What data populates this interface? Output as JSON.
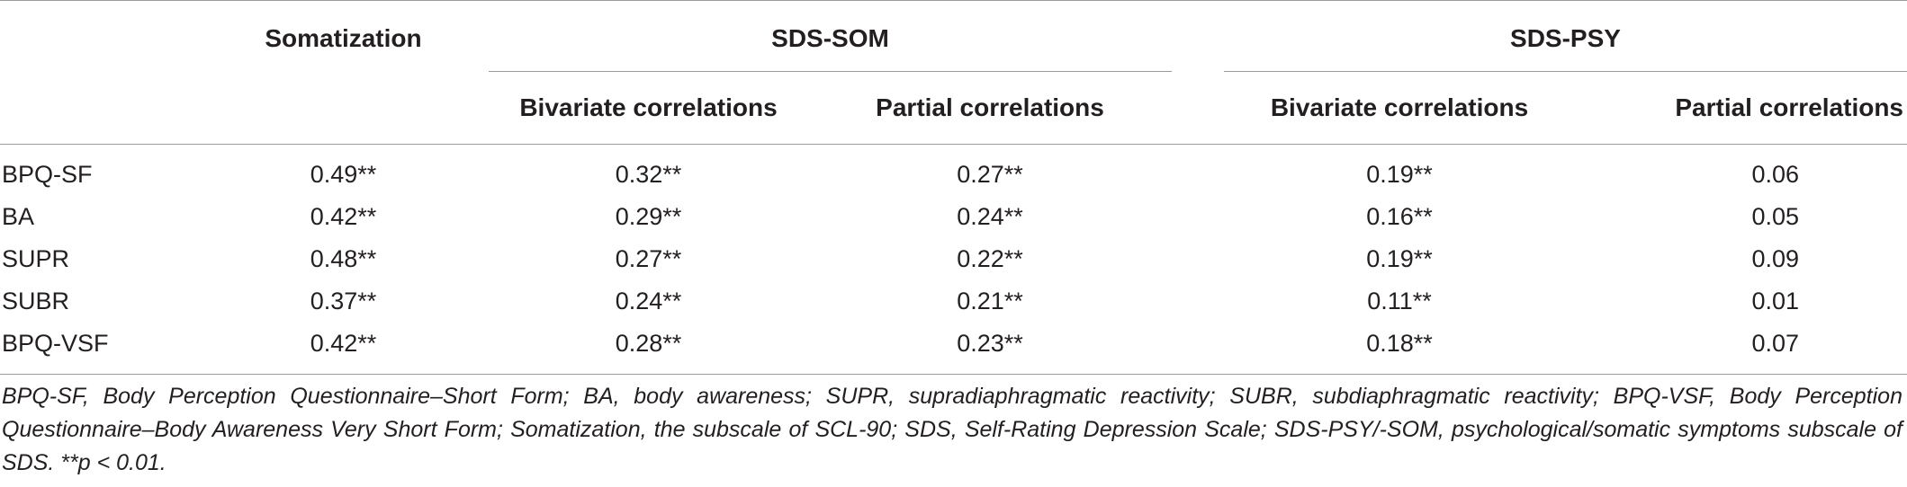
{
  "table": {
    "header": {
      "somatization": "Somatization",
      "group1": "SDS-SOM",
      "group2": "SDS-PSY",
      "sub": [
        "Bivariate correlations",
        "Partial correlations",
        "Bivariate correlations",
        "Partial correlations"
      ]
    },
    "rows": [
      {
        "label": "BPQ-SF",
        "somatization": "0.49**",
        "som_bivariate": "0.32**",
        "som_partial": "0.27**",
        "psy_bivariate": "0.19**",
        "psy_partial": "0.06"
      },
      {
        "label": "BA",
        "somatization": "0.42**",
        "som_bivariate": "0.29**",
        "som_partial": "0.24**",
        "psy_bivariate": "0.16**",
        "psy_partial": "0.05"
      },
      {
        "label": "SUPR",
        "somatization": "0.48**",
        "som_bivariate": "0.27**",
        "som_partial": "0.22**",
        "psy_bivariate": "0.19**",
        "psy_partial": "0.09"
      },
      {
        "label": "SUBR",
        "somatization": "0.37**",
        "som_bivariate": "0.24**",
        "som_partial": "0.21**",
        "psy_bivariate": "0.11**",
        "psy_partial": "0.01"
      },
      {
        "label": "BPQ-VSF",
        "somatization": "0.42**",
        "som_bivariate": "0.28**",
        "som_partial": "0.23**",
        "psy_bivariate": "0.18**",
        "psy_partial": "0.07"
      }
    ]
  },
  "footnote": "BPQ-SF, Body Perception Questionnaire–Short Form; BA, body awareness; SUPR, supradiaphragmatic reactivity; SUBR, subdiaphragmatic reactivity; BPQ-VSF, Body Perception Questionnaire–Body Awareness Very Short Form; Somatization, the subscale of SCL-90; SDS, Self-Rating Depression Scale; SDS-PSY/-SOM, psychological/somatic symptoms subscale of SDS. **p < 0.01."
}
